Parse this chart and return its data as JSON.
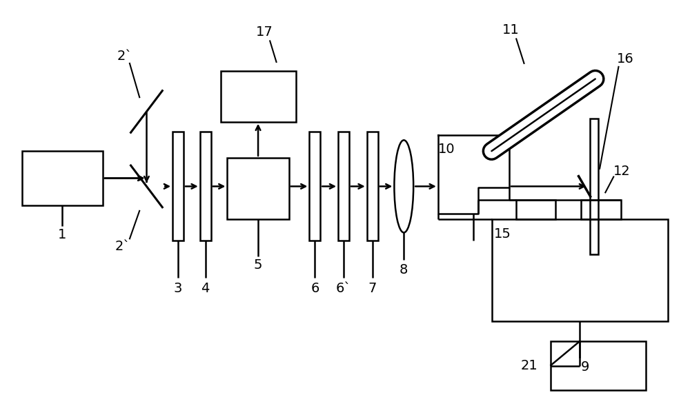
{
  "bg_color": "#ffffff",
  "line_color": "#000000",
  "lw": 1.8,
  "fig_w": 10.0,
  "fig_h": 5.89,
  "dpi": 100
}
